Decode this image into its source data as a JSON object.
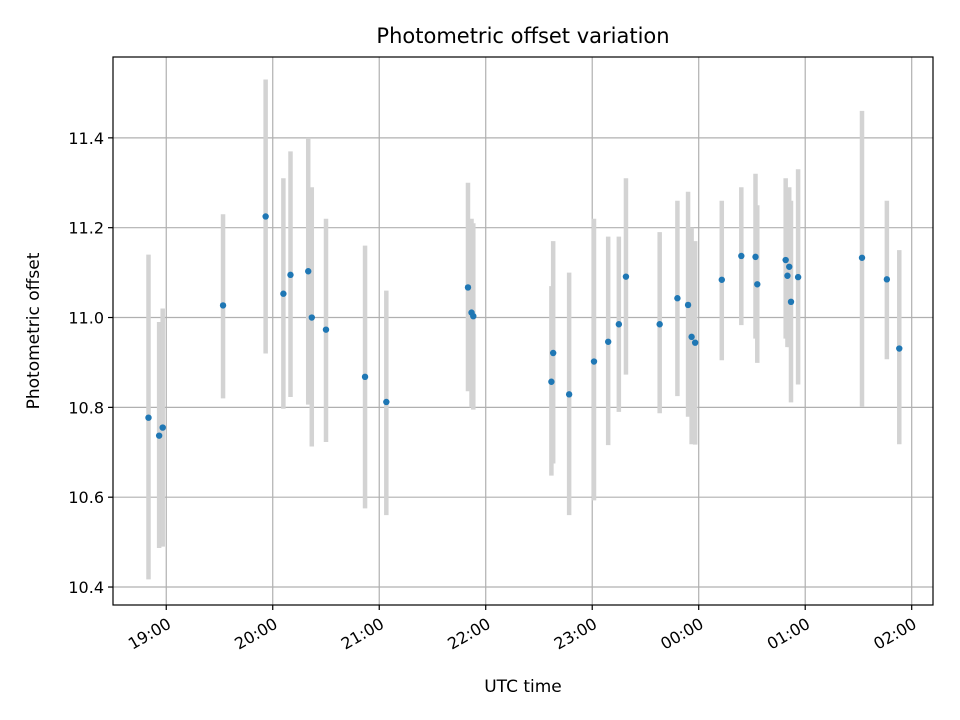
{
  "chart_data": {
    "type": "scatter",
    "title": "Photometric offset variation",
    "xlabel": "UTC time",
    "ylabel": "Photometric offset",
    "x_ticks": [
      "19:00",
      "20:00",
      "21:00",
      "22:00",
      "23:00",
      "00:00",
      "01:00",
      "02:00"
    ],
    "y_ticks": [
      "10.4",
      "10.6",
      "10.8",
      "11.0",
      "11.2",
      "11.4"
    ],
    "xlim": [
      "18:30",
      "02:12"
    ],
    "ylim": [
      10.36,
      11.58
    ],
    "grid": true,
    "colors": {
      "points": "#1f77b4",
      "error_bars": "#d3d3d3",
      "grid": "#b0b0b0"
    },
    "series": [
      {
        "points": [
          {
            "x": "18:50",
            "y": 10.777,
            "err_low": 10.417,
            "err_high": 11.14
          },
          {
            "x": "18:56",
            "y": 10.737,
            "err_low": 10.487,
            "err_high": 10.99
          },
          {
            "x": "18:58",
            "y": 10.755,
            "err_low": 10.49,
            "err_high": 11.02
          },
          {
            "x": "19:32",
            "y": 11.027,
            "err_low": 10.82,
            "err_high": 11.23
          },
          {
            "x": "19:56",
            "y": 11.225,
            "err_low": 10.92,
            "err_high": 11.53
          },
          {
            "x": "20:06",
            "y": 11.053,
            "err_low": 10.797,
            "err_high": 11.31
          },
          {
            "x": "20:10",
            "y": 11.095,
            "err_low": 10.823,
            "err_high": 11.37
          },
          {
            "x": "20:20",
            "y": 11.103,
            "err_low": 10.806,
            "err_high": 11.4
          },
          {
            "x": "20:22",
            "y": 11.0,
            "err_low": 10.713,
            "err_high": 11.29
          },
          {
            "x": "20:30",
            "y": 10.973,
            "err_low": 10.723,
            "err_high": 11.22
          },
          {
            "x": "20:52",
            "y": 10.868,
            "err_low": 10.575,
            "err_high": 11.16
          },
          {
            "x": "21:04",
            "y": 10.812,
            "err_low": 10.56,
            "err_high": 11.06
          },
          {
            "x": "21:50",
            "y": 11.067,
            "err_low": 10.836,
            "err_high": 11.3
          },
          {
            "x": "21:52",
            "y": 11.011,
            "err_low": 10.8,
            "err_high": 11.22
          },
          {
            "x": "21:53",
            "y": 11.003,
            "err_low": 10.795,
            "err_high": 11.21
          },
          {
            "x": "22:37",
            "y": 10.857,
            "err_low": 10.648,
            "err_high": 11.07
          },
          {
            "x": "22:38",
            "y": 10.921,
            "err_low": 10.675,
            "err_high": 11.17
          },
          {
            "x": "22:47",
            "y": 10.829,
            "err_low": 10.56,
            "err_high": 11.1
          },
          {
            "x": "23:01",
            "y": 10.902,
            "err_low": 10.593,
            "err_high": 11.22
          },
          {
            "x": "23:09",
            "y": 10.946,
            "err_low": 10.716,
            "err_high": 11.18
          },
          {
            "x": "23:15",
            "y": 10.985,
            "err_low": 10.79,
            "err_high": 11.18
          },
          {
            "x": "23:19",
            "y": 11.091,
            "err_low": 10.873,
            "err_high": 11.31
          },
          {
            "x": "23:38",
            "y": 10.985,
            "err_low": 10.787,
            "err_high": 11.19
          },
          {
            "x": "23:48",
            "y": 11.043,
            "err_low": 10.825,
            "err_high": 11.26
          },
          {
            "x": "23:54",
            "y": 11.028,
            "err_low": 10.779,
            "err_high": 11.28
          },
          {
            "x": "23:56",
            "y": 10.957,
            "err_low": 10.718,
            "err_high": 11.2
          },
          {
            "x": "23:58",
            "y": 10.944,
            "err_low": 10.717,
            "err_high": 11.17
          },
          {
            "x": "00:13",
            "y": 11.084,
            "err_low": 10.905,
            "err_high": 11.26
          },
          {
            "x": "00:24",
            "y": 11.137,
            "err_low": 10.983,
            "err_high": 11.29
          },
          {
            "x": "00:32",
            "y": 11.135,
            "err_low": 10.953,
            "err_high": 11.32
          },
          {
            "x": "00:33",
            "y": 11.074,
            "err_low": 10.899,
            "err_high": 11.25
          },
          {
            "x": "00:49",
            "y": 11.128,
            "err_low": 10.953,
            "err_high": 11.31
          },
          {
            "x": "00:50",
            "y": 11.093,
            "err_low": 10.934,
            "err_high": 11.25
          },
          {
            "x": "00:51",
            "y": 11.113,
            "err_low": 10.934,
            "err_high": 11.29
          },
          {
            "x": "00:52",
            "y": 11.035,
            "err_low": 10.811,
            "err_high": 11.26
          },
          {
            "x": "00:56",
            "y": 11.09,
            "err_low": 10.851,
            "err_high": 11.33
          },
          {
            "x": "01:32",
            "y": 11.133,
            "err_low": 10.801,
            "err_high": 11.46
          },
          {
            "x": "01:46",
            "y": 11.085,
            "err_low": 10.907,
            "err_high": 11.26
          },
          {
            "x": "01:53",
            "y": 10.931,
            "err_low": 10.718,
            "err_high": 11.15
          }
        ]
      }
    ]
  }
}
